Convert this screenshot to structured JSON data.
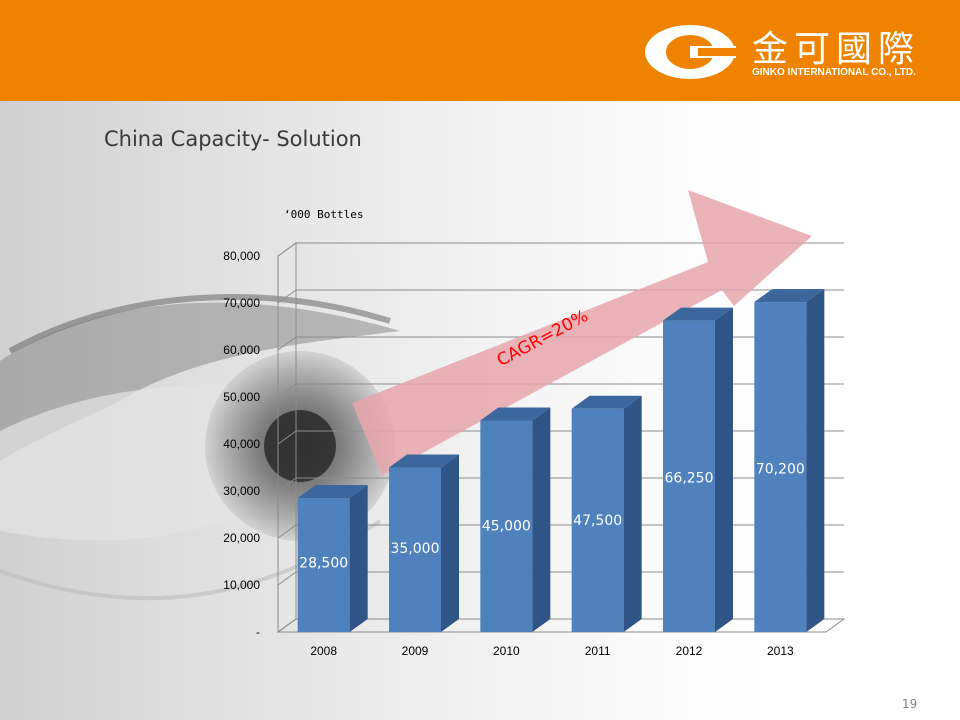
{
  "header": {
    "company_cn": "金可國際",
    "company_en": "GINKO INTERNATIONAL CO., LTD.",
    "colors": {
      "banner": "#ef8300",
      "logo": "#ffffff"
    }
  },
  "slide": {
    "title": "China Capacity- Solution",
    "page_number": "19"
  },
  "chart_data": {
    "type": "bar",
    "unit_label": "‘000 Bottles",
    "categories": [
      "2008",
      "2009",
      "2010",
      "2011",
      "2012",
      "2013"
    ],
    "values": [
      28500,
      35000,
      45000,
      47500,
      66250,
      70200
    ],
    "data_labels": [
      "28,500",
      "35,000",
      "45,000",
      "47,500",
      "66,250",
      "70,200"
    ],
    "y_ticks": [
      0,
      10000,
      20000,
      30000,
      40000,
      50000,
      60000,
      70000,
      80000
    ],
    "y_tick_labels": [
      "-",
      "10,000",
      "20,000",
      "30,000",
      "40,000",
      "50,000",
      "60,000",
      "70,000",
      "80,000"
    ],
    "ylim": [
      0,
      80000
    ],
    "grid": true,
    "annotation": "CAGR=20%",
    "colors": {
      "bar": "#4f81bd",
      "bar_side": "#2f5486",
      "bar_top": "#3c679c",
      "arrow": "#e6a6ab",
      "annotation": "#ff0000"
    }
  }
}
